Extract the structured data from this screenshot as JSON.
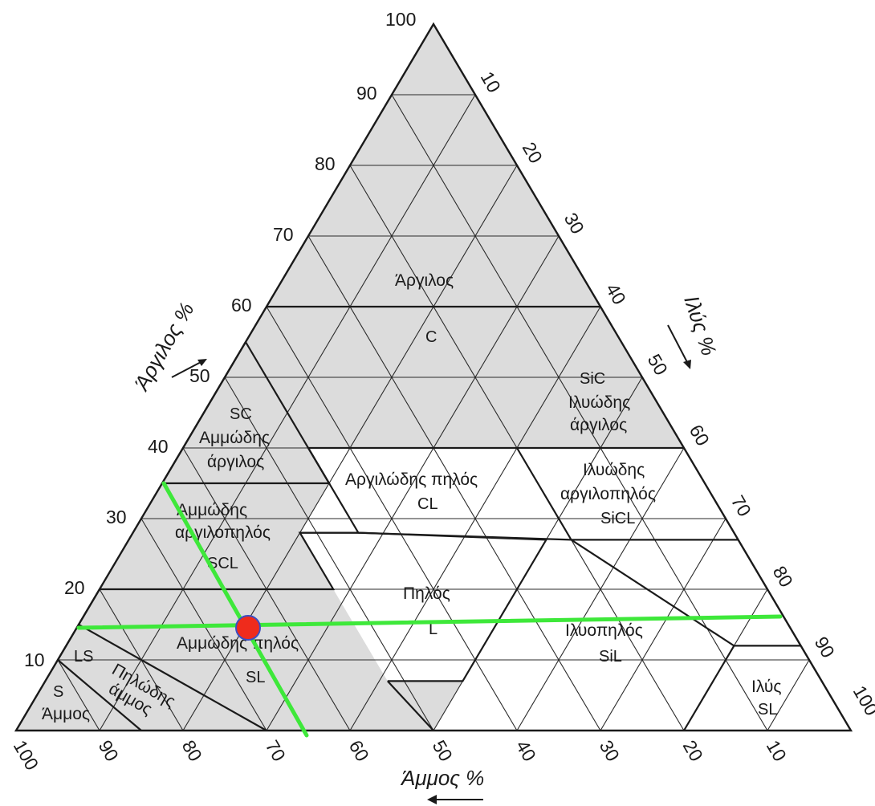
{
  "axes": {
    "clay": {
      "title": "Άργιλος %",
      "ticks": [
        "10",
        "20",
        "30",
        "40",
        "50",
        "60",
        "70",
        "80",
        "90",
        "100"
      ]
    },
    "silt": {
      "title": "Ιλύς %",
      "ticks": [
        "10",
        "20",
        "30",
        "40",
        "50",
        "60",
        "70",
        "80",
        "90",
        "100"
      ]
    },
    "sand": {
      "title": "Άμμος %",
      "ticks": [
        "100",
        "90",
        "80",
        "70",
        "60",
        "50",
        "40",
        "30",
        "20",
        "10"
      ]
    }
  },
  "regions": {
    "clay": {
      "label": "Άργιλος",
      "abbr": "C"
    },
    "sandy_clay": {
      "abbr": "SC",
      "label1": "Αμμώδης",
      "label2": "άργιλος"
    },
    "silty_clay": {
      "abbr": "SiC",
      "label1": "Ιλυώδης",
      "label2": "άργιλος"
    },
    "clay_loam": {
      "label": "Αργιλώδης πηλός",
      "abbr": "CL"
    },
    "silty_clay_loam": {
      "label1": "Ιλυώδης",
      "label2": "αργιλοπηλός",
      "abbr": "SiCL"
    },
    "sandy_clay_loam": {
      "label1": "Αμμώδης",
      "label2": "αργιλοπηλός",
      "abbr": "SCL"
    },
    "loam": {
      "label": "Πηλός",
      "abbr": "L"
    },
    "silt_loam": {
      "label": "Ιλυοπηλός",
      "abbr": "SiL"
    },
    "sandy_loam": {
      "label": "Αμμώδης πηλός",
      "abbr": "SL"
    },
    "loamy_sand": {
      "abbr": "LS",
      "label1": "Πηλώδης",
      "label2": "άμμος"
    },
    "sand": {
      "abbr": "S",
      "label": "Άμμος"
    },
    "silt": {
      "label": "Ιλύς",
      "abbr": "SL"
    }
  },
  "colors": {
    "shaded_region": "#dcdcdc",
    "highlight_line": "#3ee83a",
    "sample_point": "#ef2b1c",
    "sample_point_outline": "#3a4fc4"
  },
  "shaded_classes": [
    "clay",
    "sandy_clay",
    "silty_clay",
    "sandy_clay_loam",
    "sandy_loam",
    "loamy_sand",
    "sand"
  ],
  "sample": {
    "clay": 16,
    "sand": 72,
    "silt": 12
  }
}
